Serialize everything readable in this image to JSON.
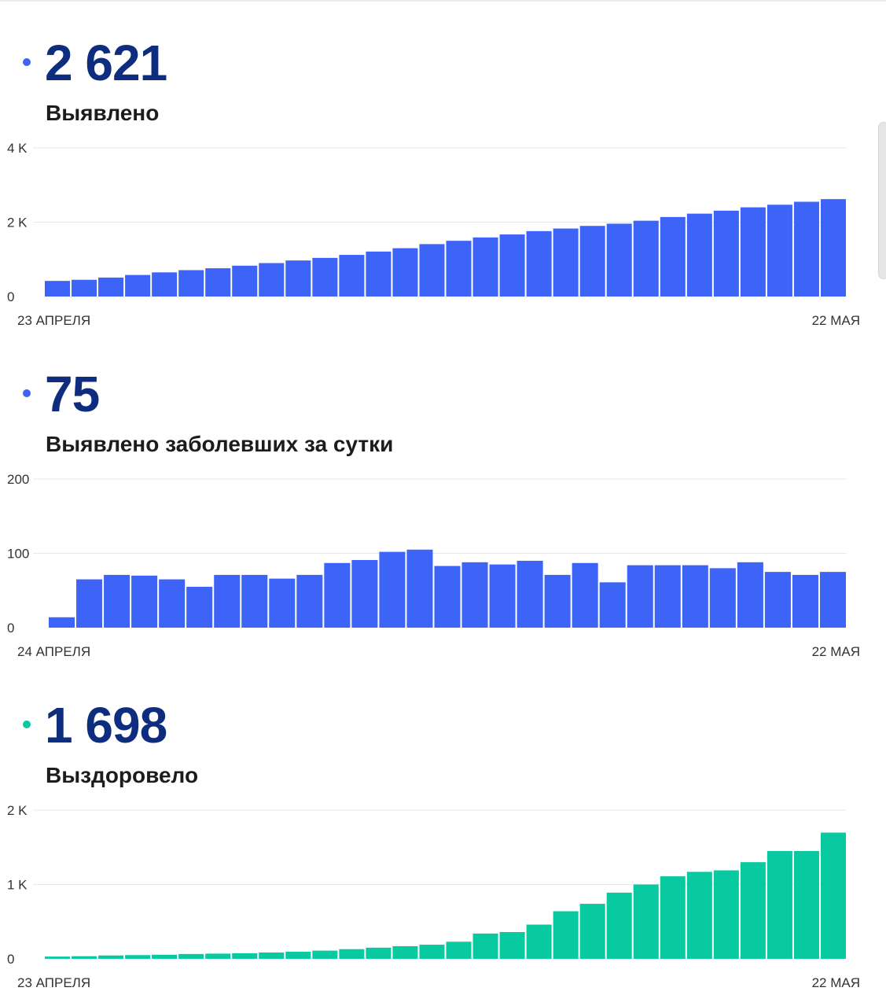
{
  "colors": {
    "blue": "#3d63f7",
    "green": "#09c9a0",
    "headline": "#0e2d7e"
  },
  "charts": [
    {
      "value": "2 621",
      "label": "Выявлено",
      "color": "#3d63f7",
      "start_label": "23 АПРЕЛЯ",
      "end_label": "22 МАЯ"
    },
    {
      "value": "75",
      "label": "Выявлено заболевших за сутки",
      "color": "#3d63f7",
      "start_label": "24 АПРЕЛЯ",
      "end_label": "22 МАЯ"
    },
    {
      "value": "1 698",
      "label": "Выздоровело",
      "color": "#09c9a0",
      "start_label": "23 АПРЕЛЯ",
      "end_label": "22 МАЯ"
    }
  ],
  "chart_data": [
    {
      "type": "bar",
      "title": "Выявлено",
      "x_start": "23 АПРЕЛЯ",
      "x_end": "22 МАЯ",
      "ylim": [
        0,
        4000
      ],
      "yticks": [
        0,
        2000,
        4000
      ],
      "ytick_labels": [
        "0",
        "2 K",
        "4 K"
      ],
      "grid": true,
      "values": [
        420,
        450,
        510,
        580,
        650,
        710,
        760,
        830,
        900,
        970,
        1040,
        1120,
        1210,
        1300,
        1410,
        1500,
        1590,
        1670,
        1760,
        1830,
        1900,
        1960,
        2040,
        2140,
        2230,
        2310,
        2400,
        2470,
        2550,
        2621
      ]
    },
    {
      "type": "bar",
      "title": "Выявлено заболевших за сутки",
      "x_start": "24 АПРЕЛЯ",
      "x_end": "22 МАЯ",
      "ylim": [
        0,
        200
      ],
      "yticks": [
        0,
        100,
        200
      ],
      "ytick_labels": [
        "0",
        "100",
        "200"
      ],
      "grid": true,
      "values": [
        14,
        65,
        71,
        70,
        65,
        55,
        71,
        71,
        66,
        71,
        87,
        91,
        102,
        105,
        83,
        88,
        85,
        90,
        71,
        87,
        61,
        84,
        84,
        84,
        80,
        88,
        75,
        71,
        75
      ]
    },
    {
      "type": "bar",
      "title": "Выздоровело",
      "x_start": "23 АПРЕЛЯ",
      "x_end": "22 МАЯ",
      "ylim": [
        0,
        2000
      ],
      "yticks": [
        0,
        1000,
        2000
      ],
      "ytick_labels": [
        "0",
        "1 K",
        "2 K"
      ],
      "grid": true,
      "values": [
        30,
        35,
        45,
        50,
        55,
        65,
        70,
        75,
        85,
        95,
        110,
        130,
        150,
        170,
        190,
        230,
        340,
        360,
        460,
        640,
        740,
        890,
        1000,
        1110,
        1170,
        1190,
        1300,
        1450,
        1450,
        1698
      ]
    }
  ]
}
